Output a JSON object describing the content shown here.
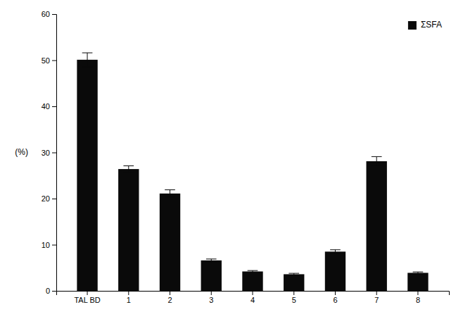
{
  "chart_data": {
    "type": "bar",
    "categories": [
      "TAL BD",
      "1",
      "2",
      "3",
      "4",
      "5",
      "6",
      "7",
      "8"
    ],
    "series": [
      {
        "name": "ΣSFA",
        "color": "#0a0a0a",
        "values": [
          50.1,
          26.4,
          21.1,
          6.6,
          4.2,
          3.6,
          8.5,
          28.1,
          3.9
        ],
        "errors": [
          1.5,
          0.7,
          0.8,
          0.3,
          0.2,
          0.2,
          0.4,
          1.0,
          0.2
        ]
      }
    ],
    "ylabel": "(%)",
    "ylim": [
      0,
      60
    ],
    "yticks": [
      0,
      10,
      20,
      30,
      40,
      50,
      60
    ],
    "grid": false,
    "legend": "upper right"
  }
}
